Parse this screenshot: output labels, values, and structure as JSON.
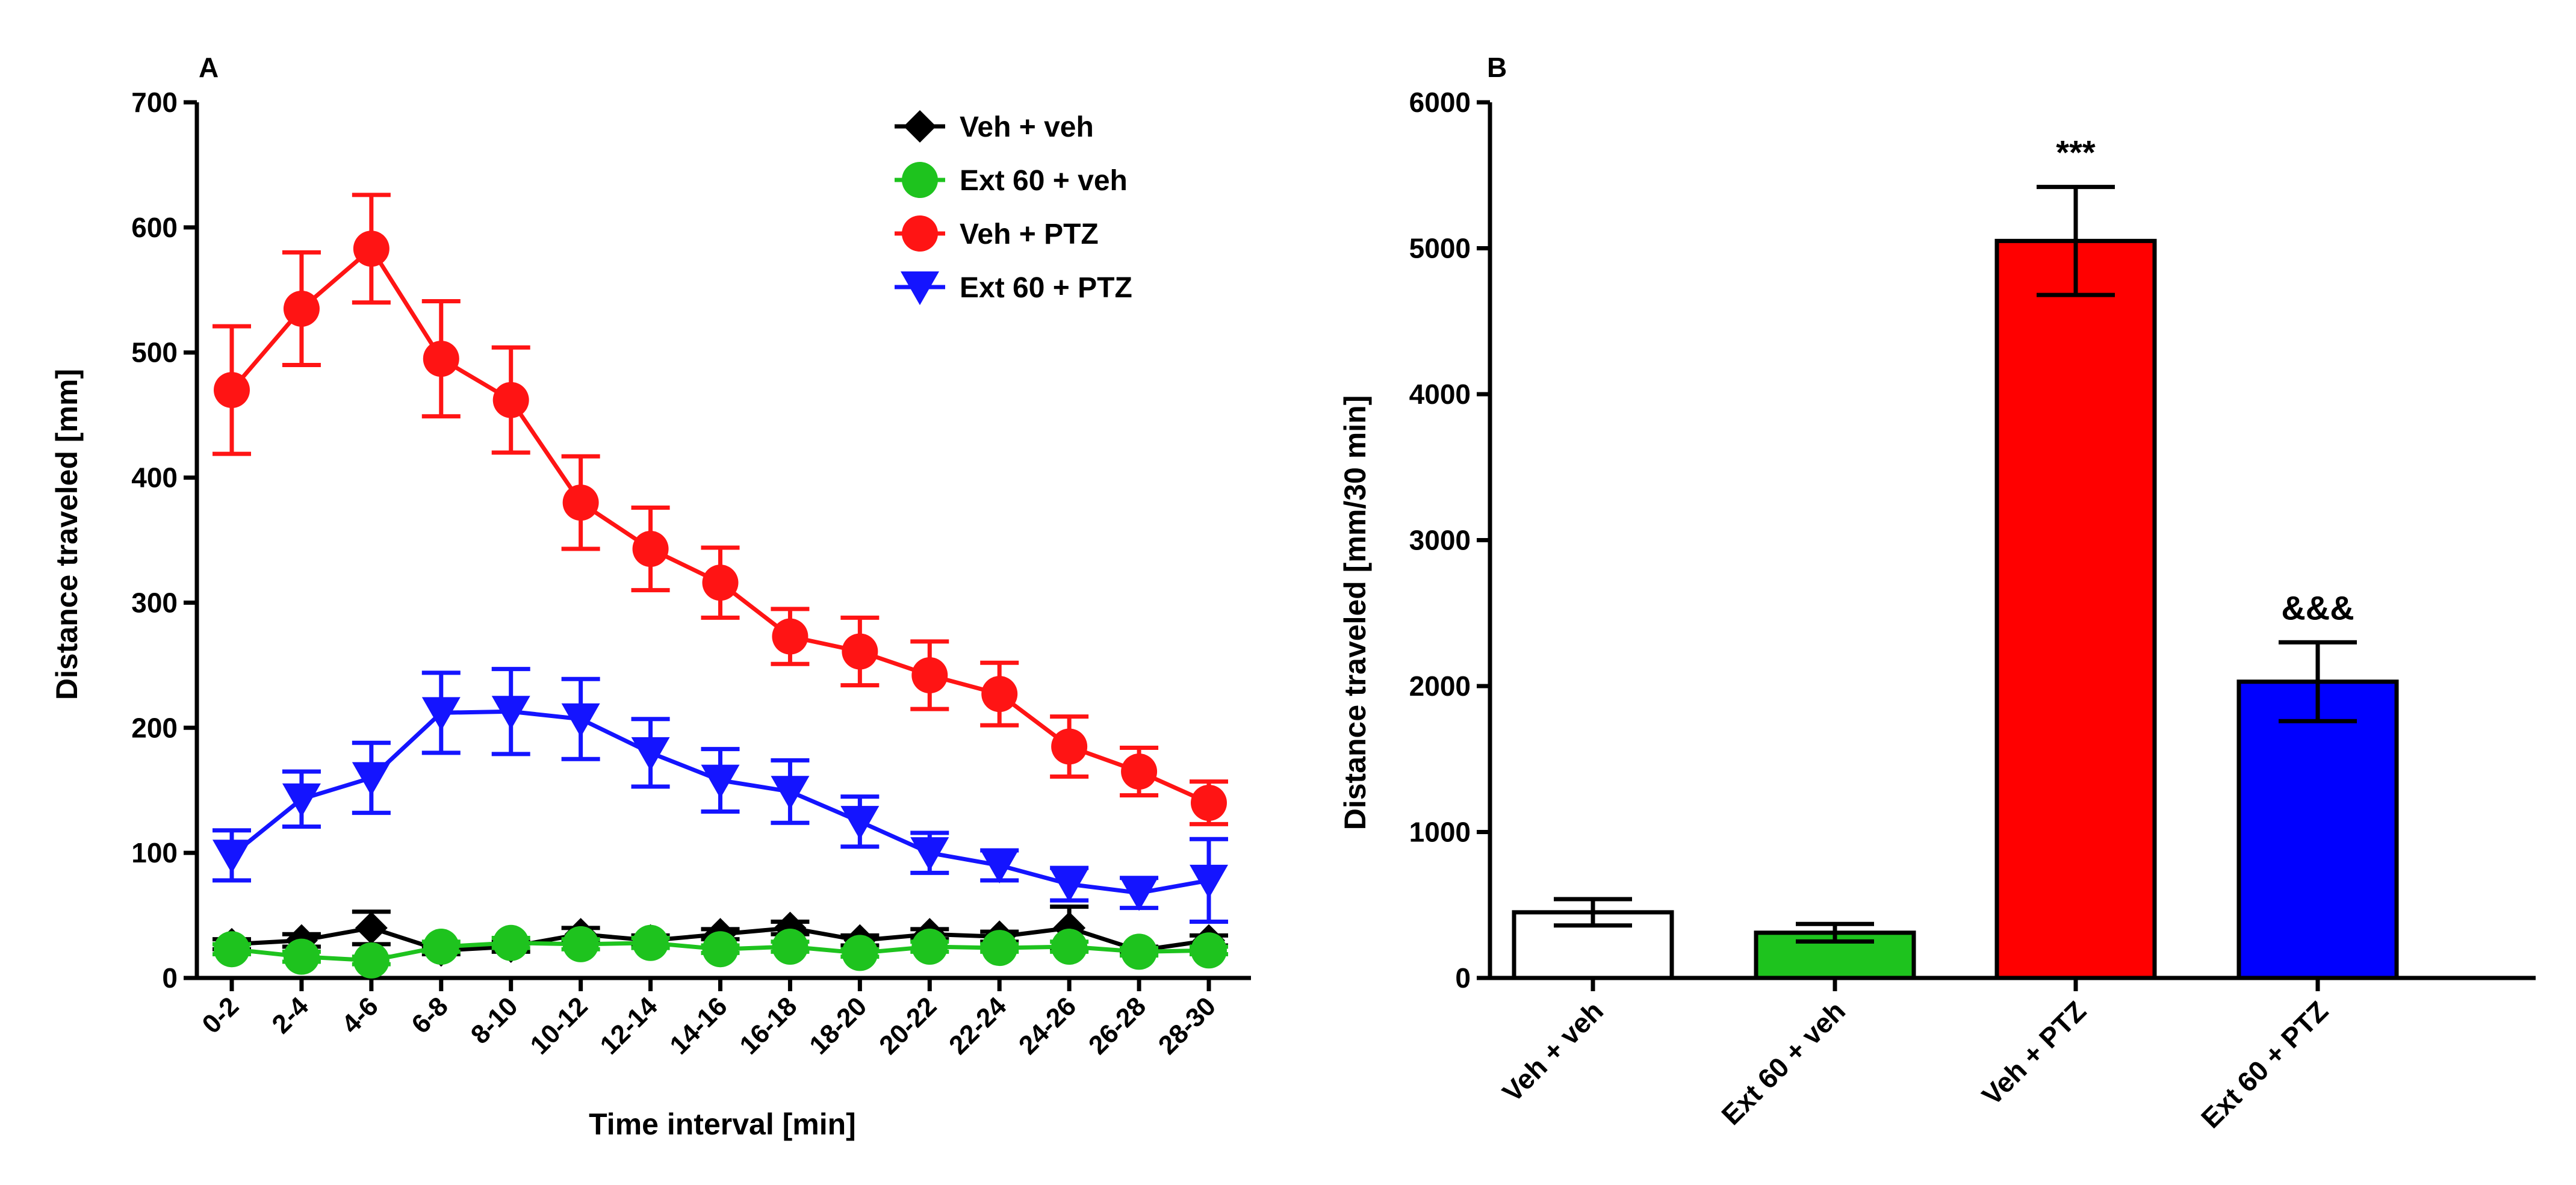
{
  "chart_data": [
    {
      "panel": "A",
      "type": "line",
      "xlabel": "Time interval [min]",
      "ylabel": "Distance traveled [mm]",
      "ylim": [
        0,
        700
      ],
      "yticks": [
        "0",
        "100",
        "200",
        "300",
        "400",
        "500",
        "600",
        "700"
      ],
      "categories": [
        "0-2",
        "2-4",
        "4-6",
        "6-8",
        "8-10",
        "10-12",
        "12-14",
        "14-16",
        "16-18",
        "18-20",
        "20-22",
        "22-24",
        "24-26",
        "26-28",
        "28-30"
      ],
      "legend_position": "top-right",
      "series": [
        {
          "name": "Veh + veh",
          "color": "#000000",
          "marker": "diamond",
          "values": [
            27,
            30,
            40,
            22,
            25,
            35,
            30,
            35,
            40,
            30,
            35,
            33,
            40,
            22,
            30
          ],
          "errors": [
            4,
            5,
            13,
            3,
            4,
            5,
            4,
            4,
            5,
            4,
            4,
            4,
            17,
            3,
            4
          ]
        },
        {
          "name": "Ext 60 + veh",
          "color": "#1ec31e",
          "marker": "circle",
          "values": [
            23,
            17,
            14,
            25,
            28,
            27,
            28,
            23,
            25,
            20,
            25,
            24,
            25,
            21,
            22
          ],
          "errors": [
            4,
            4,
            3,
            4,
            4,
            4,
            4,
            3,
            4,
            3,
            4,
            3,
            4,
            3,
            3
          ]
        },
        {
          "name": "Veh + PTZ",
          "color": "#ff1414",
          "marker": "circle",
          "values": [
            470,
            535,
            583,
            495,
            462,
            380,
            343,
            316,
            273,
            261,
            242,
            227,
            185,
            165,
            140
          ],
          "errors": [
            51,
            45,
            43,
            46,
            42,
            37,
            33,
            28,
            22,
            27,
            27,
            25,
            24,
            19,
            17
          ]
        },
        {
          "name": "Ext 60 + PTZ",
          "color": "#1414ff",
          "marker": "triangle-down",
          "values": [
            98,
            143,
            160,
            212,
            213,
            207,
            180,
            158,
            149,
            125,
            100,
            90,
            75,
            68,
            78
          ],
          "errors": [
            20,
            22,
            28,
            32,
            34,
            32,
            27,
            25,
            25,
            20,
            16,
            12,
            13,
            12,
            33
          ]
        }
      ]
    },
    {
      "panel": "B",
      "type": "bar",
      "ylabel": "Distance traveled [mm/30 min]",
      "ylim": [
        0,
        6000
      ],
      "yticks": [
        "0",
        "1000",
        "2000",
        "3000",
        "4000",
        "5000",
        "6000"
      ],
      "categories": [
        "Veh + veh",
        "Ext 60 + veh",
        "Veh + PTZ",
        "Ext 60 + PTZ"
      ],
      "values": [
        450,
        310,
        5050,
        2030
      ],
      "errors": [
        90,
        60,
        370,
        270
      ],
      "colors": [
        "#ffffff",
        "#1ec31e",
        "#ff0000",
        "#0000ff"
      ],
      "annotations": [
        "",
        "",
        "***",
        "&&&"
      ]
    }
  ]
}
